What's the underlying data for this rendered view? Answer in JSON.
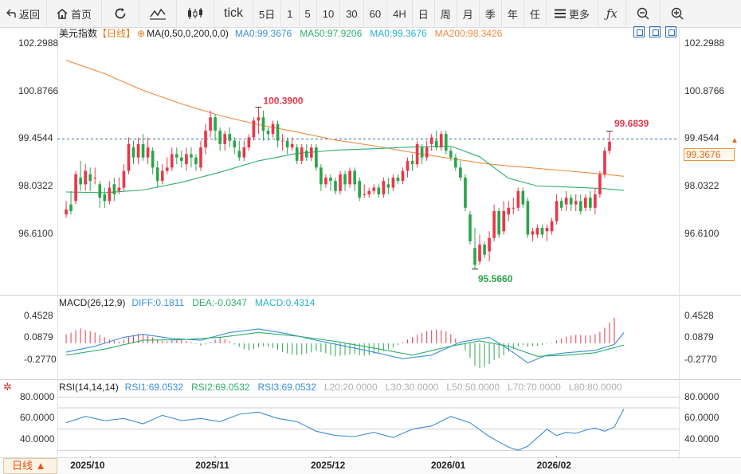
{
  "toolbar": {
    "back_label": "返回",
    "home_label": "首页",
    "tick_label": "tick",
    "periods": [
      "5日",
      "1",
      "5",
      "10",
      "30",
      "60",
      "4H",
      "日",
      "周",
      "月",
      "季",
      "年",
      "任"
    ],
    "more_label": "更多"
  },
  "header": {
    "symbol": "美元指数",
    "period": "【日线】",
    "ma_params": "MA(0,50,0,200,0,0)",
    "ma_values": [
      {
        "text": "MA0:99.3676",
        "color": "#3b8fd9"
      },
      {
        "text": "MA50:97.9206",
        "color": "#2fae6c"
      },
      {
        "text": "MA0:99.3676",
        "color": "#22b3c7"
      },
      {
        "text": "MA200:98.3426",
        "color": "#f08a3e"
      }
    ]
  },
  "macd_header": {
    "name": "MACD(26,12,9)",
    "values": [
      {
        "text": "DIFF:0.1811",
        "color": "#3b8fd9"
      },
      {
        "text": "DEA:-0.0347",
        "color": "#2fae6c"
      },
      {
        "text": "MACD:0.4314",
        "color": "#22b3c7"
      }
    ]
  },
  "rsi_header": {
    "name": "RSI(14,14,14)",
    "values": [
      {
        "text": "RSI1:69.0532",
        "color": "#3b8fd9"
      },
      {
        "text": "RSI2:69.0532",
        "color": "#2fae6c"
      },
      {
        "text": "RSI3:69.0532",
        "color": "#3b8fd9"
      },
      {
        "text": "L20:20.0000",
        "color": "#b0b0b0"
      },
      {
        "text": "L30:30.0000",
        "color": "#b0b0b0"
      },
      {
        "text": "L50:50.0000",
        "color": "#b0b0b0"
      },
      {
        "text": "L70:70.0000",
        "color": "#b0b0b0"
      },
      {
        "text": "L80:80.0000",
        "color": "#b0b0b0"
      }
    ]
  },
  "price_axis": {
    "left_ticks": [
      "102.2988",
      "100.8766",
      "99.4544",
      "98.0322",
      "96.6100"
    ],
    "right_ticks": [
      "102.2988",
      "100.8766",
      "99.4544",
      "98.0322",
      "96.6100"
    ],
    "current_price": "99.3676"
  },
  "macd_axis": {
    "left_ticks": [
      "0.4528",
      "0.0879",
      "-0.2770"
    ],
    "right_ticks": [
      "0.4528",
      "0.0879",
      "-0.2770"
    ]
  },
  "rsi_axis": {
    "left_ticks": [
      "80.0000",
      "60.0000",
      "40.0000"
    ],
    "right_ticks": [
      "80.0000",
      "60.0000",
      "40.0000"
    ]
  },
  "time_axis": {
    "period_selector": "日线 ▲",
    "labels": [
      "2025/10",
      "2025/11",
      "2025/12",
      "2026/01",
      "2026/02"
    ]
  },
  "annotations": {
    "high": "100.3900",
    "recent_high": "99.6839",
    "low": "95.5660"
  },
  "colors": {
    "up": "#e8374a",
    "down": "#2aa54a",
    "ma50": "#2fae6c",
    "ma200": "#f08a3e",
    "diff": "#3b8fd9",
    "dea": "#2fae6c",
    "rsi": "#3b8fd9"
  },
  "chart_data": {
    "type": "candlestick",
    "symbol": "美元指数",
    "ylim": [
      94.9,
      102.6
    ],
    "candles": [
      [
        97.2,
        97.35,
        97.1,
        97.6
      ],
      [
        97.5,
        97.3,
        97.2,
        97.9
      ],
      [
        97.6,
        98.4,
        97.5,
        98.5
      ],
      [
        98.3,
        98.1,
        97.9,
        98.8
      ],
      [
        98.1,
        98.5,
        97.9,
        98.7
      ],
      [
        98.4,
        98.2,
        97.9,
        98.6
      ],
      [
        98.3,
        98.3,
        98.1,
        98.6
      ],
      [
        98.1,
        97.7,
        97.4,
        98.2
      ],
      [
        97.8,
        97.6,
        97.4,
        98.0
      ],
      [
        97.6,
        98.0,
        97.5,
        98.2
      ],
      [
        98.1,
        97.8,
        97.6,
        98.3
      ],
      [
        97.9,
        98.0,
        97.8,
        98.3
      ],
      [
        98.0,
        98.5,
        97.9,
        98.7
      ],
      [
        98.5,
        99.3,
        98.4,
        99.5
      ],
      [
        99.2,
        98.9,
        98.7,
        99.4
      ],
      [
        98.9,
        99.3,
        98.7,
        99.5
      ],
      [
        99.3,
        98.9,
        98.8,
        99.6
      ],
      [
        98.9,
        99.2,
        98.7,
        99.5
      ],
      [
        99.1,
        98.6,
        98.4,
        99.2
      ],
      [
        98.6,
        98.2,
        98.0,
        98.8
      ],
      [
        98.2,
        98.5,
        98.1,
        98.7
      ],
      [
        98.5,
        98.6,
        98.4,
        98.9
      ],
      [
        98.6,
        99.0,
        98.5,
        99.2
      ],
      [
        99.0,
        98.9,
        98.7,
        99.2
      ],
      [
        98.9,
        98.8,
        98.6,
        99.1
      ],
      [
        98.7,
        99.0,
        98.5,
        99.2
      ],
      [
        99.0,
        98.9,
        98.6,
        99.2
      ],
      [
        98.9,
        98.7,
        98.5,
        99.0
      ],
      [
        98.6,
        99.2,
        98.5,
        99.4
      ],
      [
        99.2,
        99.7,
        99.0,
        99.9
      ],
      [
        99.7,
        100.1,
        99.5,
        100.3
      ],
      [
        100.1,
        99.7,
        99.4,
        100.2
      ],
      [
        99.7,
        99.3,
        99.1,
        99.8
      ],
      [
        99.3,
        99.6,
        99.1,
        99.7
      ],
      [
        99.6,
        99.4,
        99.2,
        99.8
      ],
      [
        99.4,
        99.2,
        99.0,
        99.5
      ],
      [
        99.1,
        98.9,
        98.8,
        99.4
      ],
      [
        98.9,
        99.2,
        98.8,
        99.4
      ],
      [
        99.2,
        99.5,
        99.1,
        99.6
      ],
      [
        99.5,
        100.0,
        99.4,
        100.1
      ],
      [
        100.0,
        100.1,
        99.6,
        100.4
      ],
      [
        100.1,
        99.7,
        99.4,
        100.3
      ],
      [
        99.7,
        99.6,
        99.4,
        99.8
      ],
      [
        99.6,
        99.9,
        99.5,
        100.0
      ],
      [
        99.9,
        99.4,
        99.2,
        100.0
      ],
      [
        99.4,
        99.4,
        99.1,
        99.6
      ],
      [
        99.4,
        99.2,
        99.0,
        99.5
      ],
      [
        99.2,
        99.3,
        99.1,
        99.5
      ],
      [
        99.2,
        98.8,
        98.7,
        99.3
      ],
      [
        98.8,
        99.2,
        98.7,
        99.3
      ],
      [
        99.1,
        98.9,
        98.8,
        99.3
      ],
      [
        98.9,
        99.2,
        98.8,
        99.3
      ],
      [
        99.2,
        98.6,
        98.5,
        99.3
      ],
      [
        98.6,
        98.1,
        97.9,
        98.7
      ],
      [
        98.1,
        98.3,
        98.0,
        98.4
      ],
      [
        98.3,
        98.2,
        97.9,
        98.4
      ],
      [
        98.2,
        97.9,
        97.8,
        98.3
      ],
      [
        97.9,
        98.4,
        97.8,
        98.5
      ],
      [
        98.4,
        98.1,
        97.9,
        98.5
      ],
      [
        98.1,
        98.5,
        98.0,
        98.6
      ],
      [
        98.5,
        98.1,
        97.9,
        98.6
      ],
      [
        98.2,
        97.7,
        97.6,
        98.3
      ],
      [
        97.8,
        97.8,
        97.7,
        98.1
      ],
      [
        97.8,
        97.9,
        97.7,
        98.0
      ],
      [
        97.9,
        98.0,
        97.8,
        98.1
      ],
      [
        98.0,
        97.8,
        97.7,
        98.1
      ],
      [
        97.8,
        98.2,
        97.7,
        98.3
      ],
      [
        98.1,
        98.0,
        97.8,
        98.3
      ],
      [
        98.0,
        98.3,
        97.9,
        98.4
      ],
      [
        98.3,
        98.2,
        98.1,
        98.4
      ],
      [
        98.2,
        98.5,
        98.1,
        98.6
      ],
      [
        98.5,
        98.8,
        98.3,
        98.9
      ],
      [
        98.8,
        98.7,
        98.5,
        99.0
      ],
      [
        98.7,
        99.3,
        98.6,
        99.4
      ],
      [
        99.2,
        98.9,
        98.7,
        99.3
      ],
      [
        98.9,
        99.2,
        98.8,
        99.4
      ],
      [
        99.3,
        99.5,
        99.1,
        99.6
      ],
      [
        99.4,
        99.2,
        99.1,
        99.7
      ],
      [
        99.2,
        99.6,
        99.1,
        99.7
      ],
      [
        99.6,
        99.1,
        99.0,
        99.7
      ],
      [
        99.1,
        98.9,
        98.8,
        99.2
      ],
      [
        98.9,
        98.6,
        98.5,
        99.0
      ],
      [
        98.6,
        98.3,
        98.2,
        98.8
      ],
      [
        98.3,
        97.4,
        97.3,
        98.4
      ],
      [
        97.2,
        96.4,
        96.3,
        97.3
      ],
      [
        96.2,
        95.7,
        95.57,
        96.8
      ],
      [
        95.8,
        96.3,
        95.7,
        96.6
      ],
      [
        96.3,
        96.0,
        95.9,
        96.4
      ],
      [
        96.1,
        96.5,
        95.8,
        96.7
      ],
      [
        96.5,
        97.3,
        96.4,
        97.5
      ],
      [
        97.3,
        96.6,
        96.5,
        97.4
      ],
      [
        96.7,
        97.3,
        96.6,
        97.6
      ],
      [
        97.2,
        97.4,
        97.0,
        97.6
      ],
      [
        97.4,
        97.4,
        97.2,
        97.7
      ],
      [
        97.4,
        97.9,
        97.3,
        98.0
      ],
      [
        97.9,
        97.5,
        97.4,
        98.0
      ],
      [
        97.6,
        96.6,
        96.5,
        97.7
      ],
      [
        96.6,
        96.7,
        96.4,
        96.8
      ],
      [
        96.6,
        96.8,
        96.5,
        96.9
      ],
      [
        96.8,
        96.6,
        96.5,
        96.9
      ],
      [
        96.7,
        96.8,
        96.4,
        96.9
      ],
      [
        96.7,
        97.0,
        96.6,
        97.1
      ],
      [
        97.0,
        97.6,
        96.9,
        97.8
      ],
      [
        97.6,
        97.4,
        97.3,
        97.7
      ],
      [
        97.5,
        97.7,
        97.3,
        97.9
      ],
      [
        97.7,
        97.5,
        97.3,
        97.8
      ],
      [
        97.5,
        97.6,
        97.3,
        97.8
      ],
      [
        97.6,
        97.3,
        97.2,
        97.8
      ],
      [
        97.4,
        97.7,
        97.3,
        97.8
      ],
      [
        97.7,
        97.4,
        97.3,
        97.9
      ],
      [
        97.4,
        97.8,
        97.2,
        98.0
      ],
      [
        97.8,
        98.4,
        97.7,
        98.5
      ],
      [
        98.4,
        99.1,
        98.3,
        99.2
      ],
      [
        99.1,
        99.37,
        99.0,
        99.68
      ]
    ],
    "ma50": [
      [
        0,
        97.87
      ],
      [
        8,
        97.85
      ],
      [
        16,
        97.93
      ],
      [
        24,
        98.16
      ],
      [
        32,
        98.46
      ],
      [
        40,
        98.8
      ],
      [
        48,
        99.02
      ],
      [
        56,
        99.12
      ],
      [
        64,
        99.16
      ],
      [
        72,
        99.21
      ],
      [
        80,
        99.24
      ],
      [
        86,
        98.92
      ],
      [
        92,
        98.28
      ],
      [
        98,
        98.05
      ],
      [
        104,
        98.02
      ],
      [
        112,
        97.97
      ],
      [
        116,
        97.92
      ]
    ],
    "ma200": [
      [
        0,
        101.8
      ],
      [
        8,
        101.4
      ],
      [
        16,
        100.9
      ],
      [
        24,
        100.5
      ],
      [
        32,
        100.15
      ],
      [
        40,
        99.88
      ],
      [
        48,
        99.66
      ],
      [
        56,
        99.42
      ],
      [
        64,
        99.25
      ],
      [
        72,
        99.05
      ],
      [
        80,
        98.87
      ],
      [
        88,
        98.7
      ],
      [
        96,
        98.6
      ],
      [
        104,
        98.5
      ],
      [
        112,
        98.4
      ],
      [
        116,
        98.34
      ]
    ],
    "macd_ylim": [
      -0.55,
      0.6
    ],
    "macd_hist": [
      0.15,
      0.18,
      0.22,
      0.25,
      0.22,
      0.2,
      0.18,
      0.14,
      0.1,
      0.06,
      0.04,
      0.03,
      0.06,
      0.1,
      0.14,
      0.16,
      0.15,
      0.13,
      0.1,
      0.06,
      0.04,
      0.03,
      0.05,
      0.07,
      0.06,
      0.04,
      0.02,
      -0.01,
      -0.04,
      -0.02,
      0.02,
      0.06,
      0.09,
      0.07,
      0.03,
      -0.02,
      -0.06,
      -0.1,
      -0.12,
      -0.1,
      -0.07,
      -0.05,
      -0.06,
      -0.08,
      -0.11,
      -0.15,
      -0.17,
      -0.19,
      -0.2,
      -0.19,
      -0.17,
      -0.15,
      -0.13,
      -0.15,
      -0.17,
      -0.2,
      -0.22,
      -0.21,
      -0.2,
      -0.19,
      -0.18,
      -0.2,
      -0.21,
      -0.2,
      -0.18,
      -0.16,
      -0.13,
      -0.1,
      -0.07,
      -0.03,
      0.02,
      0.06,
      0.1,
      0.14,
      0.17,
      0.2,
      0.22,
      0.23,
      0.22,
      0.2,
      0.15,
      0.08,
      -0.02,
      -0.12,
      -0.25,
      -0.38,
      -0.42,
      -0.4,
      -0.35,
      -0.28,
      -0.25,
      -0.2,
      -0.14,
      -0.1,
      -0.05,
      -0.03,
      -0.06,
      -0.05,
      -0.04,
      -0.03,
      -0.01,
      0.01,
      0.05,
      0.08,
      0.11,
      0.13,
      0.14,
      0.14,
      0.13,
      0.13,
      0.15,
      0.19,
      0.26,
      0.35,
      0.43
    ],
    "diff": [
      [
        0,
        -0.15
      ],
      [
        6,
        -0.05
      ],
      [
        12,
        0.1
      ],
      [
        16,
        0.15
      ],
      [
        22,
        0.08
      ],
      [
        28,
        0.05
      ],
      [
        34,
        0.18
      ],
      [
        40,
        0.24
      ],
      [
        46,
        0.16
      ],
      [
        52,
        0.05
      ],
      [
        58,
        -0.05
      ],
      [
        64,
        -0.15
      ],
      [
        70,
        -0.26
      ],
      [
        76,
        -0.2
      ],
      [
        82,
        0.02
      ],
      [
        88,
        0.1
      ],
      [
        92,
        -0.1
      ],
      [
        96,
        -0.33
      ],
      [
        100,
        -0.2
      ],
      [
        104,
        -0.16
      ],
      [
        110,
        -0.12
      ],
      [
        114,
        -0.02
      ],
      [
        116,
        0.18
      ]
    ],
    "dea": [
      [
        0,
        -0.2
      ],
      [
        8,
        -0.1
      ],
      [
        16,
        0.05
      ],
      [
        24,
        0.06
      ],
      [
        32,
        0.1
      ],
      [
        40,
        0.18
      ],
      [
        48,
        0.12
      ],
      [
        56,
        0.03
      ],
      [
        64,
        -0.08
      ],
      [
        72,
        -0.2
      ],
      [
        80,
        -0.05
      ],
      [
        86,
        0.04
      ],
      [
        92,
        -0.05
      ],
      [
        98,
        -0.22
      ],
      [
        104,
        -0.2
      ],
      [
        110,
        -0.16
      ],
      [
        116,
        -0.03
      ]
    ],
    "rsi_ylim": [
      25,
      85
    ],
    "rsi": [
      [
        0,
        56
      ],
      [
        4,
        62
      ],
      [
        8,
        58
      ],
      [
        12,
        60
      ],
      [
        16,
        55
      ],
      [
        20,
        63
      ],
      [
        24,
        58
      ],
      [
        28,
        60
      ],
      [
        32,
        57
      ],
      [
        36,
        64
      ],
      [
        40,
        66
      ],
      [
        44,
        60
      ],
      [
        48,
        57
      ],
      [
        52,
        48
      ],
      [
        56,
        44
      ],
      [
        60,
        43
      ],
      [
        64,
        47
      ],
      [
        68,
        42
      ],
      [
        72,
        50
      ],
      [
        76,
        53
      ],
      [
        80,
        62
      ],
      [
        84,
        56
      ],
      [
        88,
        43
      ],
      [
        90,
        38
      ],
      [
        92,
        33
      ],
      [
        94,
        30
      ],
      [
        96,
        34
      ],
      [
        98,
        42
      ],
      [
        100,
        50
      ],
      [
        102,
        44
      ],
      [
        104,
        47
      ],
      [
        106,
        46
      ],
      [
        108,
        49
      ],
      [
        110,
        51
      ],
      [
        112,
        48
      ],
      [
        114,
        52
      ],
      [
        116,
        69
      ]
    ]
  }
}
